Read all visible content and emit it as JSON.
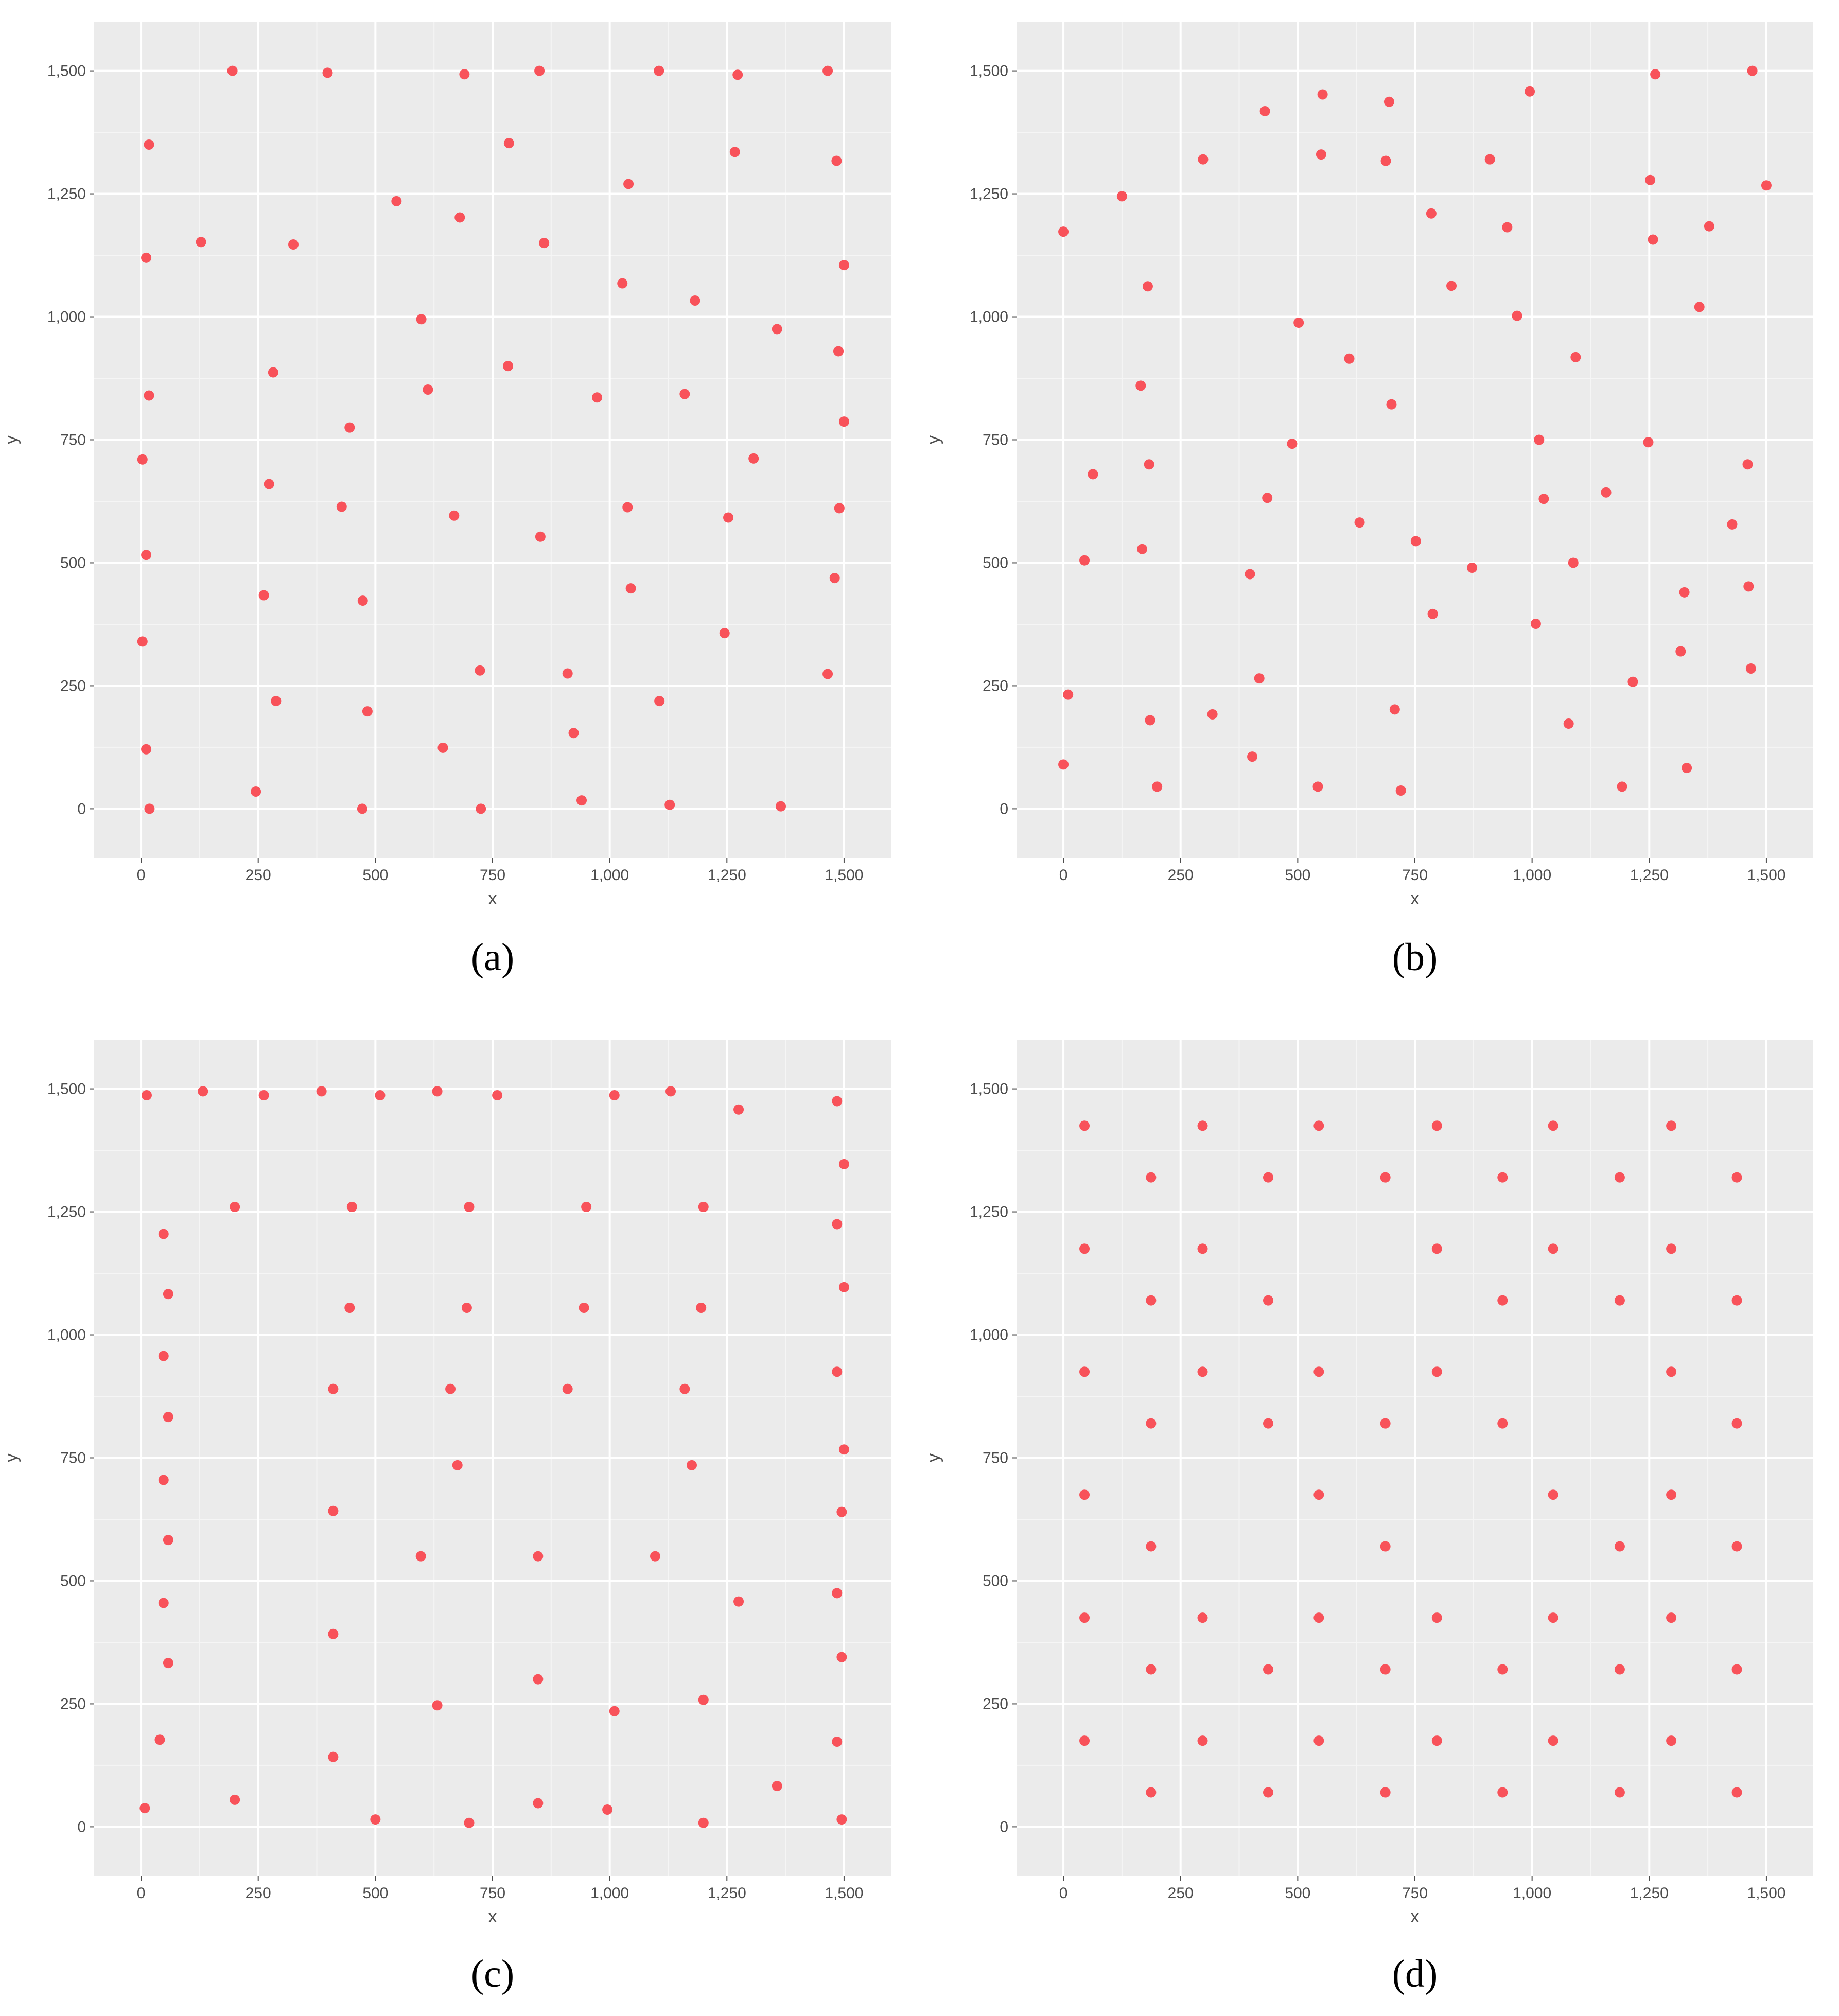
{
  "style": {
    "panel_background": "#ebebeb",
    "grid_major": "#ffffff",
    "point_color": "#f8525a",
    "tick_color": "#4d4d4d",
    "grid": true
  },
  "chart_data": [
    {
      "type": "scatter",
      "panel_label": "(a)",
      "xlabel": "x",
      "ylabel": "y",
      "xlim": [
        -100,
        1600
      ],
      "ylim": [
        -100,
        1600
      ],
      "x_ticks": [
        0,
        250,
        500,
        750,
        1000,
        1250,
        1500
      ],
      "x_tick_labels": [
        "0",
        "250",
        "500",
        "750",
        "1,000",
        "1,250",
        "1,500"
      ],
      "y_ticks": [
        0,
        250,
        500,
        750,
        1000,
        1250,
        1500
      ],
      "y_tick_labels": [
        "0",
        "250",
        "500",
        "750",
        "1,000",
        "1,250",
        "1,500"
      ],
      "points": [
        [
          195,
          1500
        ],
        [
          398,
          1496
        ],
        [
          690,
          1493
        ],
        [
          850,
          1500
        ],
        [
          1105,
          1500
        ],
        [
          1273,
          1492
        ],
        [
          1465,
          1500
        ],
        [
          17,
          1350
        ],
        [
          785,
          1353
        ],
        [
          1267,
          1335
        ],
        [
          1484,
          1317
        ],
        [
          545,
          1235
        ],
        [
          1040,
          1270
        ],
        [
          11,
          1120
        ],
        [
          128,
          1152
        ],
        [
          325,
          1147
        ],
        [
          680,
          1202
        ],
        [
          860,
          1150
        ],
        [
          1500,
          1105
        ],
        [
          598,
          995
        ],
        [
          1027,
          1068
        ],
        [
          1182,
          1033
        ],
        [
          1357,
          975
        ],
        [
          1488,
          930
        ],
        [
          17,
          840
        ],
        [
          282,
          887
        ],
        [
          612,
          852
        ],
        [
          783,
          900
        ],
        [
          973,
          836
        ],
        [
          1160,
          843
        ],
        [
          445,
          775
        ],
        [
          1500,
          787
        ],
        [
          3,
          710
        ],
        [
          273,
          660
        ],
        [
          1307,
          712
        ],
        [
          428,
          614
        ],
        [
          668,
          596
        ],
        [
          1038,
          613
        ],
        [
          1253,
          592
        ],
        [
          1490,
          611
        ],
        [
          11,
          516
        ],
        [
          852,
          553
        ],
        [
          262,
          434
        ],
        [
          473,
          423
        ],
        [
          1045,
          448
        ],
        [
          1480,
          469
        ],
        [
          3,
          340
        ],
        [
          1245,
          357
        ],
        [
          723,
          281
        ],
        [
          910,
          275
        ],
        [
          1465,
          274
        ],
        [
          288,
          219
        ],
        [
          483,
          198
        ],
        [
          1106,
          219
        ],
        [
          11,
          121
        ],
        [
          644,
          124
        ],
        [
          923,
          154
        ],
        [
          245,
          35
        ],
        [
          940,
          17
        ],
        [
          1128,
          8
        ],
        [
          18,
          0
        ],
        [
          472,
          0
        ],
        [
          725,
          0
        ],
        [
          1365,
          5
        ]
      ]
    },
    {
      "type": "scatter",
      "panel_label": "(b)",
      "xlabel": "x",
      "ylabel": "y",
      "xlim": [
        -100,
        1600
      ],
      "ylim": [
        -100,
        1600
      ],
      "x_ticks": [
        0,
        250,
        500,
        750,
        1000,
        1250,
        1500
      ],
      "x_tick_labels": [
        "0",
        "250",
        "500",
        "750",
        "1,000",
        "1,250",
        "1,500"
      ],
      "y_ticks": [
        0,
        250,
        500,
        750,
        1000,
        1250,
        1500
      ],
      "y_tick_labels": [
        "0",
        "250",
        "500",
        "750",
        "1,000",
        "1,250",
        "1,500"
      ],
      "points": [
        [
          1470,
          1500
        ],
        [
          1263,
          1493
        ],
        [
          995,
          1458
        ],
        [
          553,
          1452
        ],
        [
          695,
          1437
        ],
        [
          430,
          1418
        ],
        [
          298,
          1320
        ],
        [
          550,
          1330
        ],
        [
          688,
          1317
        ],
        [
          910,
          1320
        ],
        [
          1252,
          1278
        ],
        [
          1500,
          1267
        ],
        [
          125,
          1245
        ],
        [
          785,
          1210
        ],
        [
          947,
          1182
        ],
        [
          1378,
          1184
        ],
        [
          1258,
          1157
        ],
        [
          0,
          1173
        ],
        [
          180,
          1062
        ],
        [
          828,
          1063
        ],
        [
          1357,
          1020
        ],
        [
          968,
          1002
        ],
        [
          502,
          988
        ],
        [
          610,
          915
        ],
        [
          1093,
          918
        ],
        [
          165,
          860
        ],
        [
          700,
          822
        ],
        [
          488,
          742
        ],
        [
          1015,
          750
        ],
        [
          1248,
          745
        ],
        [
          183,
          700
        ],
        [
          1460,
          700
        ],
        [
          63,
          680
        ],
        [
          435,
          632
        ],
        [
          1158,
          643
        ],
        [
          1025,
          630
        ],
        [
          632,
          582
        ],
        [
          1427,
          578
        ],
        [
          752,
          544
        ],
        [
          168,
          528
        ],
        [
          45,
          505
        ],
        [
          872,
          490
        ],
        [
          1088,
          500
        ],
        [
          398,
          477
        ],
        [
          1462,
          452
        ],
        [
          1325,
          440
        ],
        [
          788,
          396
        ],
        [
          1008,
          376
        ],
        [
          1467,
          285
        ],
        [
          1317,
          320
        ],
        [
          418,
          265
        ],
        [
          1215,
          258
        ],
        [
          10,
          232
        ],
        [
          707,
          202
        ],
        [
          318,
          192
        ],
        [
          185,
          180
        ],
        [
          1078,
          173
        ],
        [
          403,
          106
        ],
        [
          0,
          90
        ],
        [
          1330,
          83
        ],
        [
          200,
          45
        ],
        [
          543,
          45
        ],
        [
          720,
          37
        ],
        [
          1192,
          45
        ]
      ]
    },
    {
      "type": "scatter",
      "panel_label": "(c)",
      "xlabel": "x",
      "ylabel": "y",
      "xlim": [
        -100,
        1600
      ],
      "ylim": [
        -100,
        1600
      ],
      "x_ticks": [
        0,
        250,
        500,
        750,
        1000,
        1250,
        1500
      ],
      "x_tick_labels": [
        "0",
        "250",
        "500",
        "750",
        "1,000",
        "1,250",
        "1,500"
      ],
      "y_ticks": [
        0,
        250,
        500,
        750,
        1000,
        1250,
        1500
      ],
      "y_tick_labels": [
        "0",
        "250",
        "500",
        "750",
        "1,000",
        "1,250",
        "1,500"
      ],
      "points": [
        [
          12,
          1487
        ],
        [
          132,
          1495
        ],
        [
          262,
          1487
        ],
        [
          385,
          1495
        ],
        [
          510,
          1487
        ],
        [
          632,
          1495
        ],
        [
          760,
          1487
        ],
        [
          1010,
          1487
        ],
        [
          1130,
          1495
        ],
        [
          1275,
          1458
        ],
        [
          1485,
          1475
        ],
        [
          1500,
          1347
        ],
        [
          200,
          1260
        ],
        [
          450,
          1260
        ],
        [
          700,
          1260
        ],
        [
          950,
          1260
        ],
        [
          1200,
          1260
        ],
        [
          1485,
          1225
        ],
        [
          48,
          1205
        ],
        [
          58,
          1083
        ],
        [
          1500,
          1097
        ],
        [
          445,
          1055
        ],
        [
          695,
          1055
        ],
        [
          945,
          1055
        ],
        [
          1195,
          1055
        ],
        [
          48,
          957
        ],
        [
          1485,
          925
        ],
        [
          410,
          890
        ],
        [
          660,
          890
        ],
        [
          910,
          890
        ],
        [
          1160,
          890
        ],
        [
          58,
          833
        ],
        [
          1500,
          767
        ],
        [
          675,
          735
        ],
        [
          1175,
          735
        ],
        [
          48,
          705
        ],
        [
          410,
          642
        ],
        [
          1495,
          640
        ],
        [
          58,
          583
        ],
        [
          597,
          550
        ],
        [
          847,
          550
        ],
        [
          1097,
          550
        ],
        [
          1485,
          475
        ],
        [
          1275,
          458
        ],
        [
          48,
          455
        ],
        [
          410,
          392
        ],
        [
          1495,
          345
        ],
        [
          58,
          333
        ],
        [
          847,
          300
        ],
        [
          1200,
          258
        ],
        [
          632,
          247
        ],
        [
          1010,
          235
        ],
        [
          40,
          177
        ],
        [
          1485,
          173
        ],
        [
          410,
          142
        ],
        [
          1357,
          83
        ],
        [
          200,
          55
        ],
        [
          847,
          48
        ],
        [
          995,
          35
        ],
        [
          8,
          38
        ],
        [
          500,
          15
        ],
        [
          1495,
          15
        ],
        [
          700,
          8
        ],
        [
          1200,
          8
        ]
      ]
    },
    {
      "type": "scatter",
      "panel_label": "(d)",
      "xlabel": "x",
      "ylabel": "y",
      "xlim": [
        -100,
        1600
      ],
      "ylim": [
        -100,
        1600
      ],
      "x_ticks": [
        0,
        250,
        500,
        750,
        1000,
        1250,
        1500
      ],
      "x_tick_labels": [
        "0",
        "250",
        "500",
        "750",
        "1,000",
        "1,250",
        "1,500"
      ],
      "y_ticks": [
        0,
        250,
        500,
        750,
        1000,
        1250,
        1500
      ],
      "y_tick_labels": [
        "0",
        "250",
        "500",
        "750",
        "1,000",
        "1,250",
        "1,500"
      ],
      "points": [
        [
          45,
          1425
        ],
        [
          297,
          1425
        ],
        [
          545,
          1425
        ],
        [
          797,
          1425
        ],
        [
          1045,
          1425
        ],
        [
          1297,
          1425
        ],
        [
          187,
          1320
        ],
        [
          437,
          1320
        ],
        [
          687,
          1320
        ],
        [
          937,
          1320
        ],
        [
          1187,
          1320
        ],
        [
          1437,
          1320
        ],
        [
          45,
          1175
        ],
        [
          297,
          1175
        ],
        [
          797,
          1175
        ],
        [
          1045,
          1175
        ],
        [
          1297,
          1175
        ],
        [
          187,
          1070
        ],
        [
          437,
          1070
        ],
        [
          937,
          1070
        ],
        [
          1187,
          1070
        ],
        [
          1437,
          1070
        ],
        [
          45,
          925
        ],
        [
          297,
          925
        ],
        [
          545,
          925
        ],
        [
          797,
          925
        ],
        [
          1297,
          925
        ],
        [
          187,
          820
        ],
        [
          437,
          820
        ],
        [
          687,
          820
        ],
        [
          937,
          820
        ],
        [
          1437,
          820
        ],
        [
          45,
          675
        ],
        [
          545,
          675
        ],
        [
          1045,
          675
        ],
        [
          1297,
          675
        ],
        [
          187,
          570
        ],
        [
          687,
          570
        ],
        [
          1187,
          570
        ],
        [
          1437,
          570
        ],
        [
          45,
          425
        ],
        [
          297,
          425
        ],
        [
          545,
          425
        ],
        [
          797,
          425
        ],
        [
          1045,
          425
        ],
        [
          1297,
          425
        ],
        [
          187,
          320
        ],
        [
          437,
          320
        ],
        [
          687,
          320
        ],
        [
          937,
          320
        ],
        [
          1187,
          320
        ],
        [
          1437,
          320
        ],
        [
          45,
          175
        ],
        [
          297,
          175
        ],
        [
          545,
          175
        ],
        [
          797,
          175
        ],
        [
          1045,
          175
        ],
        [
          1297,
          175
        ],
        [
          187,
          70
        ],
        [
          437,
          70
        ],
        [
          687,
          70
        ],
        [
          937,
          70
        ],
        [
          1187,
          70
        ],
        [
          1437,
          70
        ]
      ]
    }
  ]
}
